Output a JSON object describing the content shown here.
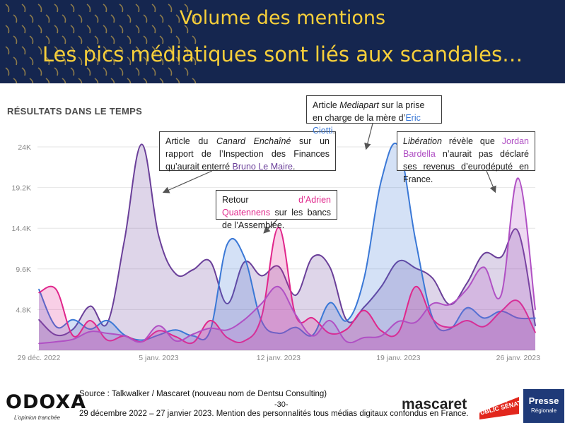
{
  "header": {
    "title_line1": "Volume des mentions",
    "title_line2": "Les pics médiatiques sont liés aux scandales…"
  },
  "chart_title": "RÉSULTATS DANS LE TEMPS",
  "callouts": {
    "maire": {
      "t1": "Article du ",
      "t2": "Canard Enchaîné",
      "t3": " sur un rapport de l’Inspection des Finances qu’aurait enterré ",
      "name": "Bruno Le Maire",
      "t4": "."
    },
    "quatennens": {
      "t1": "Retour ",
      "name": "d’Adrien Quatennens",
      "t2": " sur les bancs de l’Assemblée."
    },
    "ciotti": {
      "t1": "Article ",
      "t2": "Mediapart",
      "t3": " sur la prise en charge de la mère d’",
      "name": "Eric Ciotti",
      "t4": "."
    },
    "bardella": {
      "t1": "Libération",
      "t2": " révèle que ",
      "name": "Jordan Bardella",
      "t3": " n’aurait pas déclaré ses revenus d’eurodéputé en France."
    }
  },
  "footer": {
    "source": "Source : Talkwalker / Mascaret (nouveau nom de Dentsu Consulting)",
    "page": "-30-",
    "note": "29 décembre 2022 – 27 janvier 2023. Mention des personnalités tous médias digitaux confondus en France.",
    "brand": "ODOXA",
    "brand_tagline": "L’opinion tranchée",
    "partner1": "mascaret",
    "partner2": "PUBLIC SÉNAT",
    "partner3": "Presse",
    "partner3_sub": "Régionale"
  },
  "colors": {
    "maire": "#6a3f99",
    "ciotti": "#3a78d6",
    "quatennens": "#e0268b",
    "bardella": "#b050c4",
    "header_bg": "#15264f",
    "title": "#f7cf3a"
  },
  "chart_data": {
    "type": "area",
    "title": "RÉSULTATS DANS LE TEMPS",
    "x": [
      "2022-12-29",
      "2022-12-30",
      "2022-12-31",
      "2023-01-01",
      "2023-01-02",
      "2023-01-03",
      "2023-01-04",
      "2023-01-05",
      "2023-01-06",
      "2023-01-07",
      "2023-01-08",
      "2023-01-09",
      "2023-01-10",
      "2023-01-11",
      "2023-01-12",
      "2023-01-13",
      "2023-01-14",
      "2023-01-15",
      "2023-01-16",
      "2023-01-17",
      "2023-01-18",
      "2023-01-19",
      "2023-01-20",
      "2023-01-21",
      "2023-01-22",
      "2023-01-23",
      "2023-01-24",
      "2023-01-25",
      "2023-01-26",
      "2023-01-27"
    ],
    "xticks": [
      {
        "label": "29 déc. 2022",
        "index": 0
      },
      {
        "label": "5 janv. 2023",
        "index": 7
      },
      {
        "label": "12 janv. 2023",
        "index": 14
      },
      {
        "label": "19 janv. 2023",
        "index": 21
      },
      {
        "label": "26 janv. 2023",
        "index": 28
      }
    ],
    "yticks": [
      4800,
      9600,
      14400,
      19200,
      24000
    ],
    "ytick_labels": [
      "4.8K",
      "9.6K",
      "14.4K",
      "19.2K",
      "24K"
    ],
    "ylim": [
      0,
      26500
    ],
    "series": [
      {
        "key": "maire",
        "values": [
          3600,
          1800,
          2500,
          5200,
          3200,
          13000,
          24300,
          13500,
          9000,
          9500,
          10500,
          5500,
          10400,
          8800,
          9900,
          6500,
          11000,
          9800,
          3500,
          5100,
          7500,
          10500,
          9700,
          8500,
          5400,
          7900,
          11400,
          11000,
          14000,
          2900
        ]
      },
      {
        "key": "ciotti",
        "values": [
          7200,
          2800,
          3600,
          2500,
          3500,
          1800,
          1200,
          1800,
          2400,
          1700,
          2300,
          12500,
          11000,
          3500,
          2000,
          2700,
          1800,
          5600,
          3500,
          8500,
          20000,
          24100,
          13000,
          3800,
          2500,
          5000,
          3800,
          4600,
          3800,
          3800
        ]
      },
      {
        "key": "quatennens",
        "values": [
          6800,
          7200,
          1700,
          3500,
          1200,
          1700,
          1000,
          2300,
          1600,
          900,
          3500,
          1500,
          1100,
          3900,
          14500,
          4100,
          3800,
          2000,
          2500,
          4700,
          2300,
          2100,
          7500,
          3700,
          2700,
          3500,
          2800,
          4600,
          5800,
          2100
        ]
      },
      {
        "key": "bardella",
        "values": [
          800,
          1000,
          1300,
          2200,
          2000,
          1700,
          1000,
          2900,
          1100,
          1900,
          2600,
          2400,
          3600,
          5500,
          7500,
          4200,
          1700,
          3500,
          1000,
          1500,
          1700,
          3400,
          3300,
          5500,
          5400,
          7200,
          9800,
          6500,
          20300,
          4800
        ]
      }
    ]
  }
}
